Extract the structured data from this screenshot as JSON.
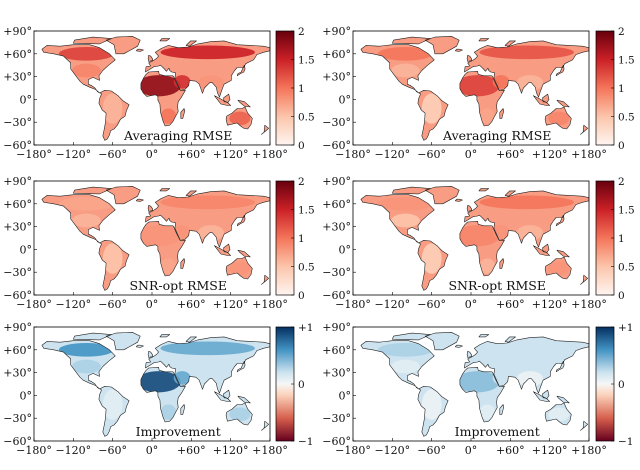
{
  "chart_data": [
    {
      "type": "heatmap",
      "panel": "top-left",
      "title": "Averaging RMSE",
      "colormap": "white-to-red",
      "colorbar": {
        "min": 0,
        "max": 2,
        "ticks": [
          "2",
          "1.5",
          "1",
          "0.5",
          "0"
        ]
      },
      "x_ticks": [
        "−180°",
        "−120°",
        "−60°",
        "0°",
        "+60°",
        "+120°",
        "+180°"
      ],
      "y_ticks": [
        "+90°",
        "+60°",
        "+30°",
        "0°",
        "−30°",
        "−60°"
      ],
      "xlim": [
        -180,
        180
      ],
      "ylim": [
        -60,
        90
      ],
      "regions": [
        {
          "name": "Sahara / Sahel",
          "value": 1.8
        },
        {
          "name": "Arabia",
          "value": 1.4
        },
        {
          "name": "Northern Eurasia",
          "value": 1.5
        },
        {
          "name": "Canada",
          "value": 1.3
        },
        {
          "name": "USA",
          "value": 0.9
        },
        {
          "name": "South America",
          "value": 0.6
        },
        {
          "name": "Southern Africa",
          "value": 1.0
        },
        {
          "name": "Australia",
          "value": 1.1
        },
        {
          "name": "India / SE Asia",
          "value": 0.8
        }
      ]
    },
    {
      "type": "heatmap",
      "panel": "top-right",
      "title": "Averaging RMSE",
      "colormap": "white-to-red",
      "colorbar": {
        "min": 0,
        "max": 2,
        "ticks": [
          "2",
          "1.5",
          "1",
          "0.5",
          "0"
        ]
      },
      "x_ticks": [
        "−180°",
        "−120°",
        "−60°",
        "0°",
        "+60°",
        "+120°",
        "+180°"
      ],
      "y_ticks": [
        "+90°",
        "+60°",
        "+30°",
        "0°",
        "−30°",
        "−60°"
      ],
      "xlim": [
        -180,
        180
      ],
      "ylim": [
        -60,
        90
      ],
      "regions": [
        {
          "name": "Sahara / Sahel",
          "value": 1.3
        },
        {
          "name": "Arabia",
          "value": 1.0
        },
        {
          "name": "Northern Eurasia",
          "value": 1.2
        },
        {
          "name": "Canada",
          "value": 1.0
        },
        {
          "name": "USA",
          "value": 0.6
        },
        {
          "name": "South America",
          "value": 0.4
        },
        {
          "name": "Southern Africa",
          "value": 0.7
        },
        {
          "name": "Australia",
          "value": 0.9
        },
        {
          "name": "India / SE Asia",
          "value": 0.6
        }
      ]
    },
    {
      "type": "heatmap",
      "panel": "middle-left",
      "title": "SNR-opt RMSE",
      "colormap": "white-to-red",
      "colorbar": {
        "min": 0,
        "max": 2,
        "ticks": [
          "2",
          "1.5",
          "1",
          "0.5",
          "0"
        ]
      },
      "x_ticks": [
        "−180°",
        "−120°",
        "−60°",
        "0°",
        "+60°",
        "+120°",
        "+180°"
      ],
      "y_ticks": [
        "+90°",
        "+60°",
        "+30°",
        "0°",
        "−30°",
        "−60°"
      ],
      "xlim": [
        -180,
        180
      ],
      "ylim": [
        -60,
        90
      ],
      "regions": [
        {
          "name": "Sahara / Sahel",
          "value": 0.8
        },
        {
          "name": "Arabia",
          "value": 0.8
        },
        {
          "name": "Northern Eurasia",
          "value": 0.9
        },
        {
          "name": "Canada",
          "value": 0.7
        },
        {
          "name": "USA",
          "value": 0.6
        },
        {
          "name": "South America",
          "value": 0.5
        },
        {
          "name": "Southern Africa",
          "value": 0.7
        },
        {
          "name": "Australia",
          "value": 0.8
        },
        {
          "name": "India / SE Asia",
          "value": 0.6
        }
      ]
    },
    {
      "type": "heatmap",
      "panel": "middle-right",
      "title": "SNR-opt RMSE",
      "colormap": "white-to-red",
      "colorbar": {
        "min": 0,
        "max": 2,
        "ticks": [
          "2",
          "1.5",
          "1",
          "0.5",
          "0"
        ]
      },
      "x_ticks": [
        "−180°",
        "−120°",
        "−60°",
        "0°",
        "+60°",
        "+120°",
        "+180°"
      ],
      "y_ticks": [
        "+90°",
        "+60°",
        "+30°",
        "0°",
        "−30°",
        "−60°"
      ],
      "xlim": [
        -180,
        180
      ],
      "ylim": [
        -60,
        90
      ],
      "regions": [
        {
          "name": "Sahara / Sahel",
          "value": 0.9
        },
        {
          "name": "Arabia",
          "value": 0.8
        },
        {
          "name": "Northern Eurasia",
          "value": 1.0
        },
        {
          "name": "Canada",
          "value": 0.8
        },
        {
          "name": "USA",
          "value": 0.5
        },
        {
          "name": "South America",
          "value": 0.4
        },
        {
          "name": "Southern Africa",
          "value": 0.6
        },
        {
          "name": "Australia",
          "value": 0.8
        },
        {
          "name": "India / SE Asia",
          "value": 0.6
        }
      ]
    },
    {
      "type": "heatmap",
      "panel": "bottom-left",
      "title": "Improvement",
      "colormap": "red-white-blue",
      "colorbar": {
        "min": -1,
        "max": 1,
        "ticks": [
          "+1",
          "0",
          "−1"
        ]
      },
      "x_ticks": [
        "−180°",
        "−120°",
        "−60°",
        "0°",
        "+60°",
        "+120°",
        "+180°"
      ],
      "y_ticks": [
        "+90°",
        "+60°",
        "+30°",
        "0°",
        "−30°",
        "−60°"
      ],
      "xlim": [
        -180,
        180
      ],
      "ylim": [
        -60,
        90
      ],
      "regions": [
        {
          "name": "Sahara / Sahel",
          "value": 0.9
        },
        {
          "name": "Arabia",
          "value": 0.5
        },
        {
          "name": "Northern Eurasia",
          "value": 0.5
        },
        {
          "name": "Canada",
          "value": 0.6
        },
        {
          "name": "USA",
          "value": 0.3
        },
        {
          "name": "South America",
          "value": 0.1
        },
        {
          "name": "Southern Africa",
          "value": 0.3
        },
        {
          "name": "Australia",
          "value": 0.3
        },
        {
          "name": "India / SE Asia",
          "value": 0.2
        }
      ]
    },
    {
      "type": "heatmap",
      "panel": "bottom-right",
      "title": "Improvement",
      "colormap": "red-white-blue",
      "colorbar": {
        "min": -1,
        "max": 1,
        "ticks": [
          "+1",
          "0",
          "−1"
        ]
      },
      "x_ticks": [
        "−180°",
        "−120°",
        "−60°",
        "0°",
        "+60°",
        "+120°",
        "+180°"
      ],
      "y_ticks": [
        "+90°",
        "+60°",
        "+30°",
        "0°",
        "−30°",
        "−60°"
      ],
      "xlim": [
        -180,
        180
      ],
      "ylim": [
        -60,
        90
      ],
      "regions": [
        {
          "name": "Sahara / Sahel",
          "value": 0.4
        },
        {
          "name": "Arabia",
          "value": 0.2
        },
        {
          "name": "Northern Eurasia",
          "value": 0.2
        },
        {
          "name": "Canada",
          "value": 0.3
        },
        {
          "name": "USA",
          "value": 0.1
        },
        {
          "name": "South America",
          "value": 0.05
        },
        {
          "name": "Southern Africa",
          "value": 0.1
        },
        {
          "name": "Australia",
          "value": 0.1
        },
        {
          "name": "India / SE Asia",
          "value": 0.05
        }
      ]
    }
  ]
}
